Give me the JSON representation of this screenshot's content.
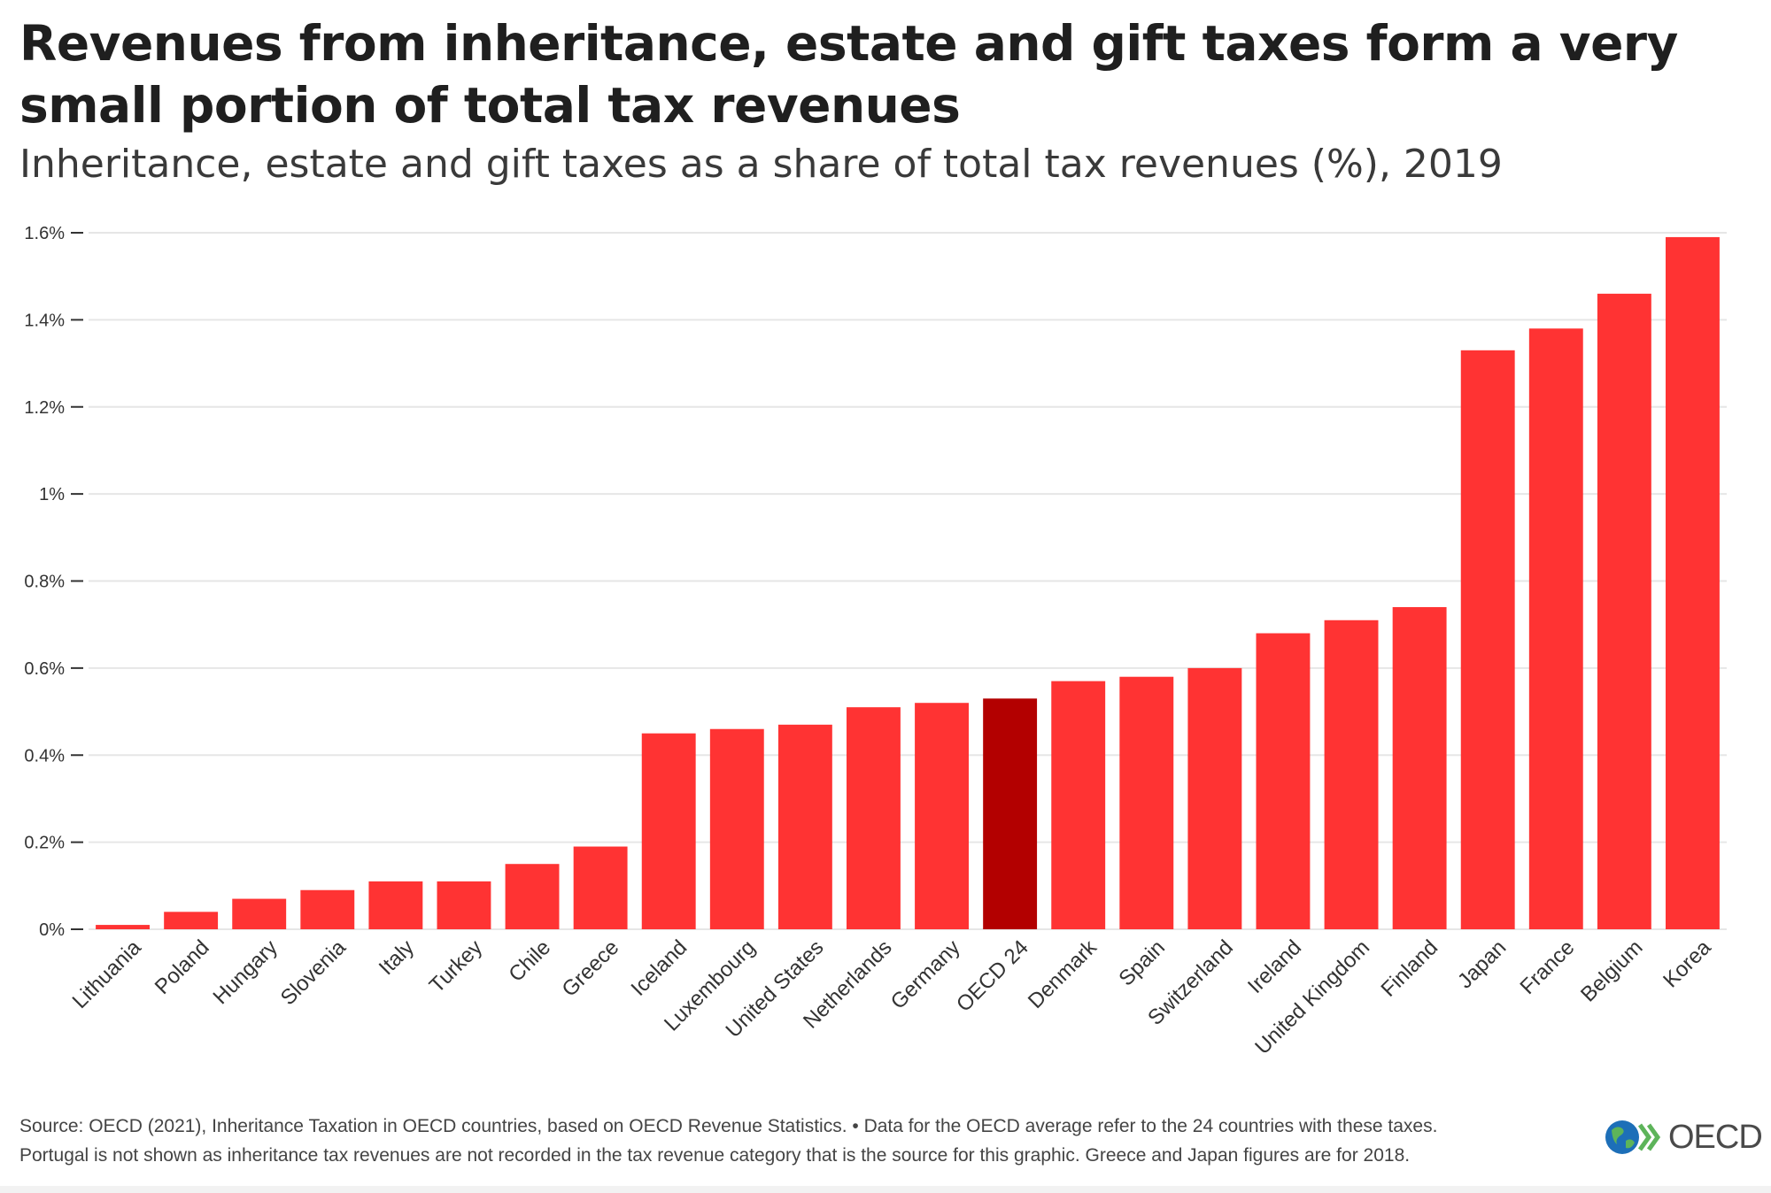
{
  "title": "Revenues from inheritance, estate and gift taxes form a very small portion of total tax revenues",
  "subtitle": "Inheritance, estate and gift taxes as a share of total tax revenues (%), 2019",
  "footer": {
    "line1": "Source: OECD (2021), Inheritance Taxation in OECD countries, based on OECD Revenue Statistics. • Data for the OECD average refer to the 24 countries with these taxes.",
    "line2": "Portugal is not shown as inheritance tax revenues are not recorded in the tax revenue category that is the source for this graphic. Greece and Japan figures are for 2018."
  },
  "logo": {
    "text": "OECD",
    "icon": "oecd-globe-icon"
  },
  "colors": {
    "bar": "#ff3333",
    "highlight": "#b30000",
    "grid": "#e6e6e6",
    "axis": "#333333"
  },
  "chart_data": {
    "type": "bar",
    "title": "Revenues from inheritance, estate and gift taxes form a very small portion of total tax revenues",
    "subtitle": "Inheritance, estate and gift taxes as a share of total tax revenues (%), 2019",
    "xlabel": "",
    "ylabel": "",
    "categories": [
      "Lithuania",
      "Poland",
      "Hungary",
      "Slovenia",
      "Italy",
      "Turkey",
      "Chile",
      "Greece",
      "Iceland",
      "Luxembourg",
      "United States",
      "Netherlands",
      "Germany",
      "OECD 24",
      "Denmark",
      "Spain",
      "Switzerland",
      "Ireland",
      "United Kingdom",
      "Finland",
      "Japan",
      "France",
      "Belgium",
      "Korea"
    ],
    "values": [
      0.01,
      0.04,
      0.07,
      0.09,
      0.11,
      0.11,
      0.15,
      0.19,
      0.45,
      0.46,
      0.47,
      0.51,
      0.52,
      0.53,
      0.57,
      0.58,
      0.6,
      0.68,
      0.71,
      0.74,
      1.33,
      1.38,
      1.46,
      1.59
    ],
    "highlight": "OECD 24",
    "ylim": [
      0,
      1.6
    ],
    "yticks": [
      0,
      0.2,
      0.4,
      0.6,
      0.8,
      1.0,
      1.2,
      1.4,
      1.6
    ],
    "ytick_labels": [
      "0%",
      "0.2%",
      "0.4%",
      "0.6%",
      "0.8%",
      "1%",
      "1.2%",
      "1.4%",
      "1.6%"
    ],
    "grid": true,
    "legend": "none"
  }
}
